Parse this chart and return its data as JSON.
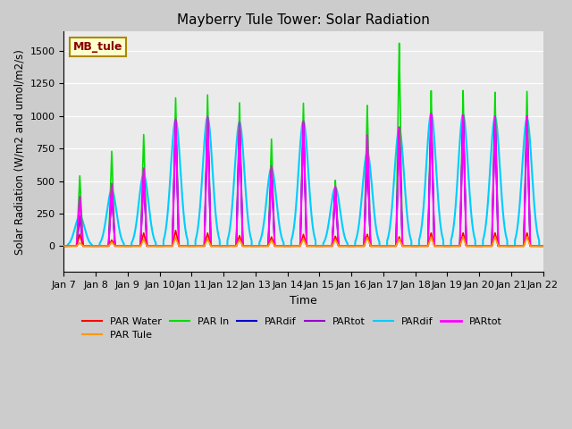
{
  "title": "Mayberry Tule Tower: Solar Radiation",
  "ylabel": "Solar Radiation (W/m2 and umol/m2/s)",
  "xlabel": "Time",
  "ylim": [
    -200,
    1650
  ],
  "xtick_labels": [
    "Jan 7",
    "Jan 8",
    "Jan 9",
    "Jan 10",
    "Jan 11",
    "Jan 12",
    "Jan 13",
    "Jan 14",
    "Jan 15",
    "Jan 16",
    "Jan 17",
    "Jan 18",
    "Jan 19",
    "Jan 20",
    "Jan 21",
    "Jan 22"
  ],
  "annotation_text": "MB_tule",
  "annotation_bg": "#ffffcc",
  "annotation_border": "#aa8800",
  "series": {
    "PAR_Water": {
      "color": "#ff0000",
      "label": "PAR Water",
      "lw": 1.2
    },
    "PAR_Tule": {
      "color": "#ff9900",
      "label": "PAR Tule",
      "lw": 1.2
    },
    "PAR_In": {
      "color": "#00dd00",
      "label": "PAR In",
      "lw": 1.2
    },
    "PARdif1": {
      "color": "#0000cc",
      "label": "PARdif",
      "lw": 1.2
    },
    "PARtot1": {
      "color": "#9900cc",
      "label": "PARtot",
      "lw": 1.2
    },
    "PARdif2": {
      "color": "#00ccff",
      "label": "PARdif",
      "lw": 1.5
    },
    "PARtot2": {
      "color": "#ff00ff",
      "label": "PARtot",
      "lw": 1.5
    }
  },
  "day_peaks": [
    {
      "par_water": 90,
      "par_tule": 25,
      "par_in": 540,
      "pardif1": 230,
      "partot1": 230,
      "pardif2": 230,
      "partot2": 380
    },
    {
      "par_water": 45,
      "par_tule": 30,
      "par_in": 730,
      "pardif1": 430,
      "partot1": 430,
      "pardif2": 430,
      "partot2": 480
    },
    {
      "par_water": 100,
      "par_tule": 50,
      "par_in": 860,
      "pardif1": 550,
      "partot1": 550,
      "pardif2": 550,
      "partot2": 600
    },
    {
      "par_water": 120,
      "par_tule": 65,
      "par_in": 1145,
      "pardif1": 970,
      "partot1": 970,
      "pardif2": 970,
      "partot2": 980
    },
    {
      "par_water": 100,
      "par_tule": 55,
      "par_in": 1170,
      "pardif1": 990,
      "partot1": 990,
      "pardif2": 990,
      "partot2": 1000
    },
    {
      "par_water": 80,
      "par_tule": 50,
      "par_in": 1110,
      "pardif1": 950,
      "partot1": 950,
      "pardif2": 950,
      "partot2": 960
    },
    {
      "par_water": 70,
      "par_tule": 45,
      "par_in": 830,
      "pardif1": 600,
      "partot1": 600,
      "pardif2": 600,
      "partot2": 620
    },
    {
      "par_water": 90,
      "par_tule": 55,
      "par_in": 1110,
      "pardif1": 960,
      "partot1": 960,
      "pardif2": 960,
      "partot2": 970
    },
    {
      "par_water": 75,
      "par_tule": 50,
      "par_in": 510,
      "pardif1": 450,
      "partot1": 450,
      "pardif2": 450,
      "partot2": 460
    },
    {
      "par_water": 90,
      "par_tule": 65,
      "par_in": 1090,
      "pardif1": 720,
      "partot1": 720,
      "pardif2": 720,
      "partot2": 860
    },
    {
      "par_water": 70,
      "par_tule": 55,
      "par_in": 1570,
      "pardif1": 900,
      "partot1": 900,
      "pardif2": 900,
      "partot2": 920
    },
    {
      "par_water": 100,
      "par_tule": 70,
      "par_in": 1200,
      "pardif1": 1020,
      "partot1": 1020,
      "pardif2": 1020,
      "partot2": 1020
    },
    {
      "par_water": 100,
      "par_tule": 72,
      "par_in": 1200,
      "pardif1": 1010,
      "partot1": 1010,
      "pardif2": 1010,
      "partot2": 1010
    },
    {
      "par_water": 100,
      "par_tule": 70,
      "par_in": 1185,
      "pardif1": 990,
      "partot1": 990,
      "pardif2": 990,
      "partot2": 1000
    },
    {
      "par_water": 100,
      "par_tule": 72,
      "par_in": 1190,
      "pardif1": 980,
      "partot1": 980,
      "pardif2": 980,
      "partot2": 1000
    }
  ]
}
